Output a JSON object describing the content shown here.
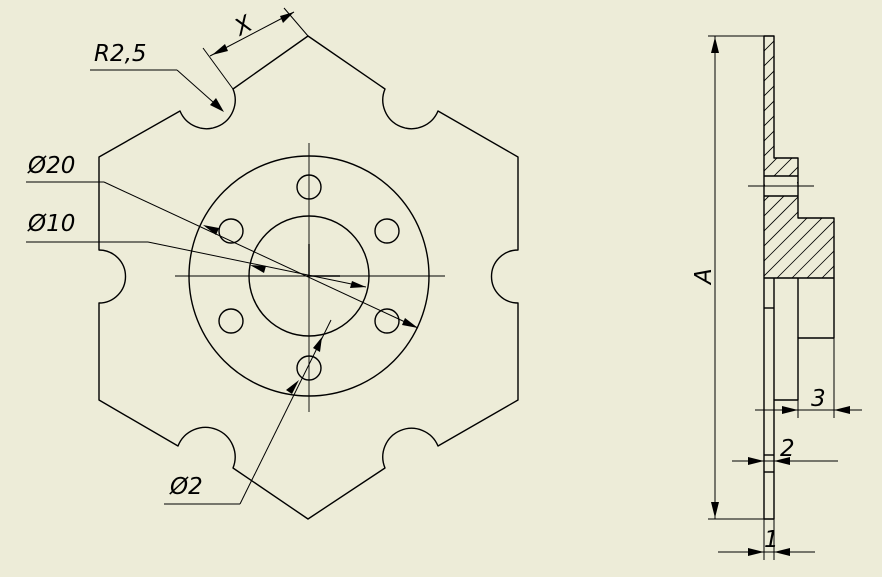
{
  "colors": {
    "background": "#edecd8",
    "ink": "#000000"
  },
  "labels": {
    "x_dim": "X",
    "radius": "R2,5",
    "dia_20": "Ø20",
    "dia_10": "Ø10",
    "dia_2": "Ø2",
    "height_a": "A",
    "dim_3": "3",
    "dim_2": "2",
    "dim_1": "1"
  }
}
